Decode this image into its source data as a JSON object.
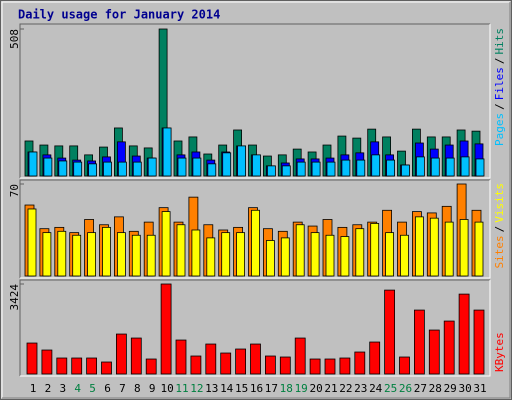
{
  "chart_data": [
    {
      "type": "bar",
      "title": "Daily usage for January 2014",
      "ylim": [
        0,
        508
      ],
      "yticks": [
        508
      ],
      "legend_separator": "/",
      "series": [
        {
          "name": "Pages",
          "color": "#00c0ff",
          "values": [
            83,
            62,
            52,
            48,
            42,
            48,
            48,
            48,
            62,
            166,
            62,
            62,
            42,
            80,
            104,
            73,
            35,
            35,
            48,
            48,
            48,
            55,
            55,
            73,
            55,
            38,
            66,
            62,
            62,
            66,
            59
          ]
        },
        {
          "name": "Files",
          "color": "#0000ff",
          "values": [
            83,
            73,
            62,
            55,
            52,
            66,
            118,
            69,
            62,
            166,
            73,
            83,
            55,
            83,
            104,
            73,
            35,
            45,
            59,
            59,
            62,
            73,
            80,
            118,
            73,
            38,
            114,
            93,
            107,
            121,
            111
          ]
        },
        {
          "name": "Hits",
          "color": "#008060",
          "values": [
            121,
            107,
            104,
            104,
            73,
            100,
            166,
            104,
            97,
            508,
            121,
            135,
            76,
            107,
            159,
            107,
            69,
            73,
            93,
            83,
            107,
            138,
            131,
            162,
            135,
            86,
            162,
            135,
            135,
            159,
            155
          ]
        }
      ]
    },
    {
      "type": "bar",
      "ylim": [
        0,
        70
      ],
      "yticks": [
        70
      ],
      "legend_separator": "/",
      "series": [
        {
          "name": "Sites",
          "color": "#ff8000",
          "values": [
            54,
            36,
            37,
            33,
            43,
            39,
            45,
            34,
            41,
            52,
            41,
            60,
            39,
            35,
            37,
            52,
            36,
            34,
            41,
            38,
            43,
            37,
            39,
            41,
            50,
            41,
            49,
            48,
            53,
            70,
            50
          ]
        },
        {
          "name": "Visits",
          "color": "#ffff00",
          "values": [
            51,
            33,
            34,
            31,
            33,
            37,
            33,
            31,
            31,
            49,
            39,
            35,
            29,
            33,
            33,
            50,
            27,
            29,
            39,
            33,
            31,
            30,
            36,
            40,
            33,
            31,
            45,
            44,
            41,
            43,
            41
          ]
        }
      ]
    },
    {
      "type": "bar",
      "ylim": [
        0,
        3424
      ],
      "yticks": [
        3424
      ],
      "categories": [
        "1",
        "2",
        "3",
        "4",
        "5",
        "6",
        "7",
        "8",
        "9",
        "10",
        "11",
        "12",
        "13",
        "14",
        "15",
        "16",
        "17",
        "18",
        "19",
        "20",
        "21",
        "22",
        "23",
        "24",
        "25",
        "26",
        "27",
        "28",
        "29",
        "30",
        "31"
      ],
      "category_color": "#000000",
      "highlight_color": "#008040",
      "highlight_categories": [
        3,
        4,
        10,
        11,
        17,
        18,
        24,
        25
      ],
      "series": [
        {
          "name": "KBytes",
          "color": "#ff0000",
          "values": [
            1178,
            912,
            608,
            608,
            608,
            456,
            1520,
            1368,
            570,
            3424,
            1292,
            684,
            1140,
            798,
            950,
            1140,
            684,
            646,
            1368,
            570,
            570,
            608,
            836,
            1216,
            3192,
            646,
            2432,
            1672,
            2014,
            3040,
            2432
          ]
        }
      ]
    }
  ]
}
